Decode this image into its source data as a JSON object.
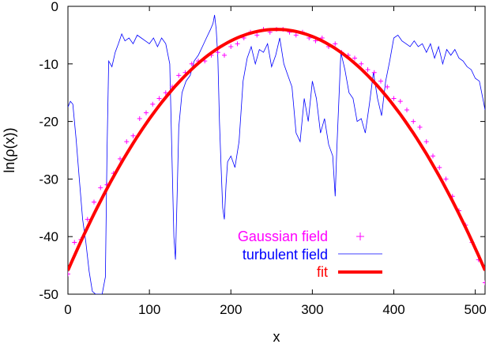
{
  "chart_data": {
    "type": "scatter",
    "xlabel": "x",
    "ylabel": "ln(ρ(x))",
    "xlim": [
      0,
      512
    ],
    "ylim": [
      -50,
      0
    ],
    "x_ticks": [
      0,
      100,
      200,
      300,
      400,
      500
    ],
    "y_ticks": [
      0,
      -10,
      -20,
      -30,
      -40,
      -50
    ],
    "x_tick_labels": [
      "0",
      "100",
      "200",
      "300",
      "400",
      "500"
    ],
    "y_tick_labels": [
      "0",
      "-10",
      "-20",
      "-30",
      "-40",
      "-50"
    ],
    "legend_position": "bottom-center",
    "series": [
      {
        "name": "Gaussian field",
        "style": "points",
        "marker": "+",
        "color": "#ff00ff",
        "x": [
          0,
          8,
          16,
          24,
          32,
          40,
          48,
          56,
          64,
          72,
          80,
          88,
          96,
          104,
          112,
          120,
          128,
          136,
          144,
          152,
          160,
          168,
          176,
          184,
          192,
          200,
          208,
          216,
          224,
          232,
          240,
          248,
          256,
          264,
          272,
          280,
          288,
          296,
          304,
          312,
          320,
          328,
          336,
          344,
          352,
          360,
          368,
          376,
          384,
          392,
          400,
          408,
          416,
          424,
          432,
          440,
          448,
          456,
          464,
          472,
          480,
          488,
          496,
          504,
          512
        ],
        "y": [
          -46.5,
          -41,
          -40.5,
          -37,
          -34,
          -31.5,
          -31,
          -29,
          -26.5,
          -23.5,
          -22.5,
          -19.5,
          -18.5,
          -17,
          -16,
          -15,
          -14,
          -12,
          -11.5,
          -10,
          -9.5,
          -9.5,
          -8.5,
          -8,
          -8.5,
          -7,
          -6.5,
          -5.5,
          -4.5,
          -5,
          -4,
          -4.5,
          -4,
          -4,
          -4.5,
          -5,
          -4.5,
          -5.5,
          -6,
          -5.5,
          -7,
          -6.5,
          -8,
          -8.5,
          -9,
          -10,
          -11,
          -11.5,
          -13,
          -14,
          -16,
          -16.5,
          -18,
          -20,
          -21,
          -23.5,
          -26,
          -28,
          -30,
          -33,
          -35.5,
          -38,
          -41,
          -44,
          -48
        ]
      },
      {
        "name": "turbulent field",
        "style": "line",
        "color": "#0000ff",
        "x": [
          0,
          3,
          6,
          10,
          14,
          18,
          22,
          26,
          30,
          34,
          38,
          42,
          46,
          48,
          50,
          54,
          58,
          62,
          66,
          70,
          75,
          80,
          85,
          90,
          95,
          100,
          105,
          110,
          115,
          120,
          125,
          128,
          130,
          132,
          134,
          136,
          140,
          145,
          150,
          155,
          160,
          165,
          170,
          175,
          178,
          180,
          182,
          184,
          186,
          188,
          190,
          192,
          194,
          196,
          200,
          205,
          210,
          215,
          220,
          225,
          230,
          235,
          240,
          245,
          250,
          255,
          260,
          265,
          270,
          275,
          280,
          285,
          290,
          295,
          300,
          305,
          310,
          315,
          320,
          325,
          328,
          330,
          335,
          340,
          345,
          350,
          355,
          360,
          365,
          370,
          375,
          380,
          385,
          390,
          395,
          400,
          405,
          410,
          415,
          420,
          425,
          430,
          435,
          440,
          445,
          450,
          455,
          460,
          465,
          470,
          475,
          480,
          485,
          490,
          495,
          500,
          505,
          510,
          512
        ],
        "y": [
          -17.5,
          -16.5,
          -17,
          -23,
          -30,
          -37,
          -41,
          -46,
          -49.5,
          -50,
          -50,
          -50,
          -47,
          -25,
          -9.5,
          -10.5,
          -8,
          -6.5,
          -4.8,
          -6,
          -5.5,
          -6.5,
          -5,
          -5.5,
          -6,
          -6.5,
          -5.5,
          -7,
          -5.5,
          -6.5,
          -10,
          -28,
          -40,
          -44,
          -33,
          -21,
          -15,
          -13,
          -12,
          -9.5,
          -8.5,
          -7,
          -5.5,
          -4,
          -3,
          -1.5,
          -4,
          -9,
          -20,
          -28,
          -35,
          -37,
          -31,
          -27,
          -26,
          -28,
          -23.5,
          -13,
          -9,
          -7,
          -10,
          -7.5,
          -8,
          -6.5,
          -10.5,
          -8.5,
          -5.5,
          -10,
          -12,
          -14,
          -22,
          -23.5,
          -16,
          -20,
          -13,
          -16,
          -22,
          -19.5,
          -24,
          -26,
          -33,
          -25,
          -8,
          -11,
          -15,
          -16,
          -20,
          -19.5,
          -22,
          -17,
          -11.5,
          -16,
          -19,
          -13,
          -9.5,
          -5.5,
          -5,
          -6,
          -6.5,
          -7,
          -6,
          -7,
          -6.5,
          -8,
          -6.5,
          -9,
          -7,
          -10,
          -7.5,
          -8.5,
          -7.5,
          -9,
          -9.5,
          -10.5,
          -11,
          -12.5,
          -13,
          -16.5,
          -18
        ]
      },
      {
        "name": "fit",
        "style": "line",
        "color": "#ff0000",
        "quadratic": {
          "a": -0.000639,
          "x0": 256,
          "y0": -4
        }
      }
    ]
  }
}
